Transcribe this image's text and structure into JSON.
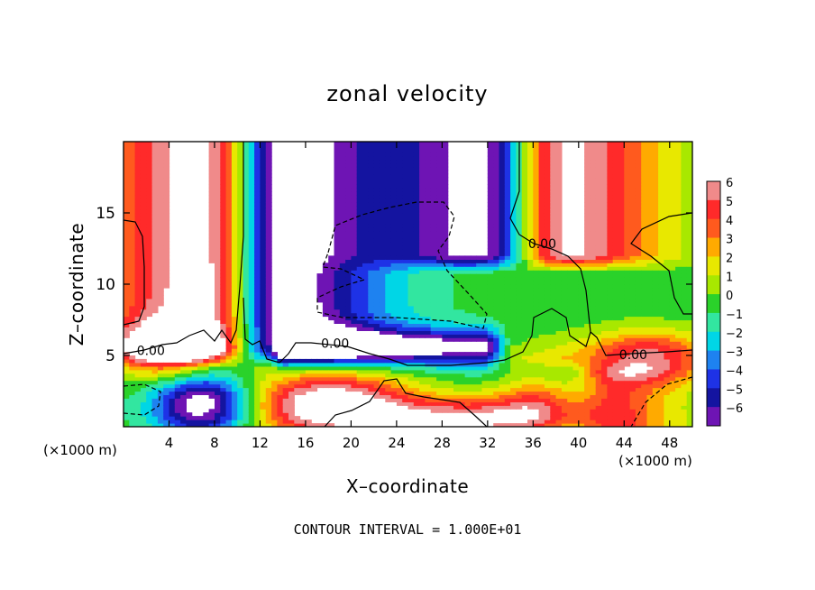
{
  "chart_data": {
    "type": "heatmap",
    "title": "zonal velocity",
    "xlabel": "X–coordinate",
    "ylabel": "Z–coordinate",
    "x_unit_left": "(×1000 m)",
    "x_unit_right": "(×1000 m)",
    "footer": "CONTOUR INTERVAL = 1.000E+01",
    "xlim": [
      0,
      50
    ],
    "ylim": [
      0,
      20
    ],
    "xticks": [
      4,
      8,
      12,
      16,
      20,
      24,
      28,
      32,
      36,
      40,
      44,
      48
    ],
    "yticks": [
      5,
      10,
      15
    ],
    "contour_labels": [
      {
        "text": "0.00",
        "x": 2.4,
        "y": 5.3
      },
      {
        "text": "0.00",
        "x": 18.6,
        "y": 5.8
      },
      {
        "text": "0.00",
        "x": 36.8,
        "y": 12.8
      },
      {
        "text": "0.00",
        "x": 44.8,
        "y": 5.0
      }
    ],
    "colorbar": {
      "labels": [
        "6",
        "5",
        "4",
        "3",
        "2",
        "1",
        "0",
        "−1",
        "−2",
        "−3",
        "−4",
        "−5",
        "−6"
      ],
      "values": [
        6,
        5,
        4,
        3,
        2,
        1,
        0,
        -1,
        -2,
        -3,
        -4,
        -5,
        -6
      ],
      "colors": [
        "#f08a8a",
        "#ff2a2a",
        "#ff5a1e",
        "#ffaa00",
        "#e8e800",
        "#a8e800",
        "#2ad22a",
        "#32e6a0",
        "#00d6e6",
        "#1e82f0",
        "#1e32e6",
        "#1414a0",
        "#6e14b4"
      ]
    },
    "field_colors": [
      "#6e14b4",
      "#1414a0",
      "#1e32e6",
      "#1e82f0",
      "#00d6e6",
      "#32e6a0",
      "#2ad22a",
      "#a8e800",
      "#e8e800",
      "#ffaa00",
      "#ff5a1e",
      "#ff2a2a",
      "#f08a8a"
    ]
  }
}
